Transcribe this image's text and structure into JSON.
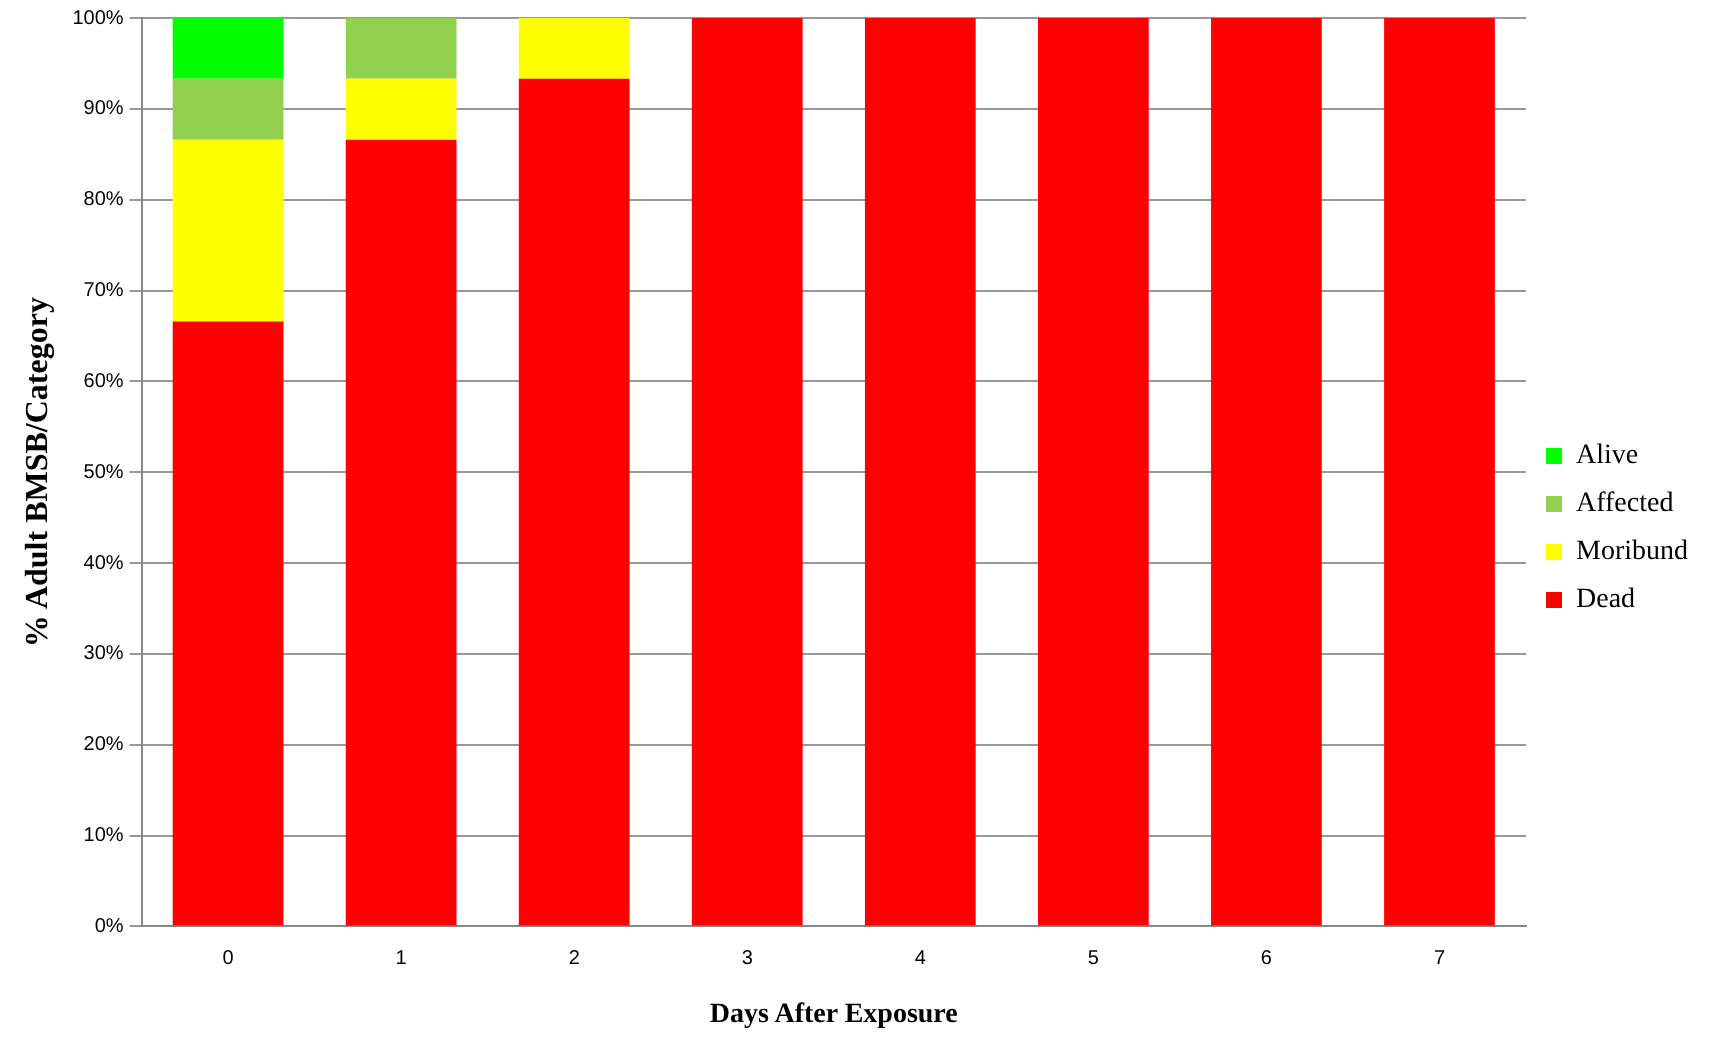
{
  "chart_data": {
    "type": "bar",
    "stacked": true,
    "xlabel": "Days After Exposure",
    "ylabel": "% Adult BMSB/Category",
    "categories": [
      "0",
      "1",
      "2",
      "3",
      "4",
      "5",
      "6",
      "7"
    ],
    "series": [
      {
        "name": "Dead",
        "color": "#ff0000",
        "values": [
          66.6,
          86.6,
          93.3,
          100,
          100,
          100,
          100,
          100
        ]
      },
      {
        "name": "Moribund",
        "color": "#ffff00",
        "values": [
          20,
          6.7,
          6.7,
          0,
          0,
          0,
          0,
          0
        ]
      },
      {
        "name": "Affected",
        "color": "#92d050",
        "values": [
          6.7,
          6.7,
          0,
          0,
          0,
          0,
          0,
          0
        ]
      },
      {
        "name": "Alive",
        "color": "#00ff00",
        "values": [
          6.7,
          0,
          0,
          0,
          0,
          0,
          0,
          0
        ]
      }
    ],
    "ylim": [
      0,
      100
    ],
    "yticks": [
      {
        "value": 0,
        "label": "0%"
      },
      {
        "value": 10,
        "label": "10%"
      },
      {
        "value": 20,
        "label": "20%"
      },
      {
        "value": 30,
        "label": "30%"
      },
      {
        "value": 40,
        "label": "40%"
      },
      {
        "value": 50,
        "label": "50%"
      },
      {
        "value": 60,
        "label": "60%"
      },
      {
        "value": 70,
        "label": "70%"
      },
      {
        "value": 80,
        "label": "80%"
      },
      {
        "value": 90,
        "label": "90%"
      },
      {
        "value": 100,
        "label": "100%"
      }
    ],
    "grid": "y",
    "legend": "right"
  }
}
